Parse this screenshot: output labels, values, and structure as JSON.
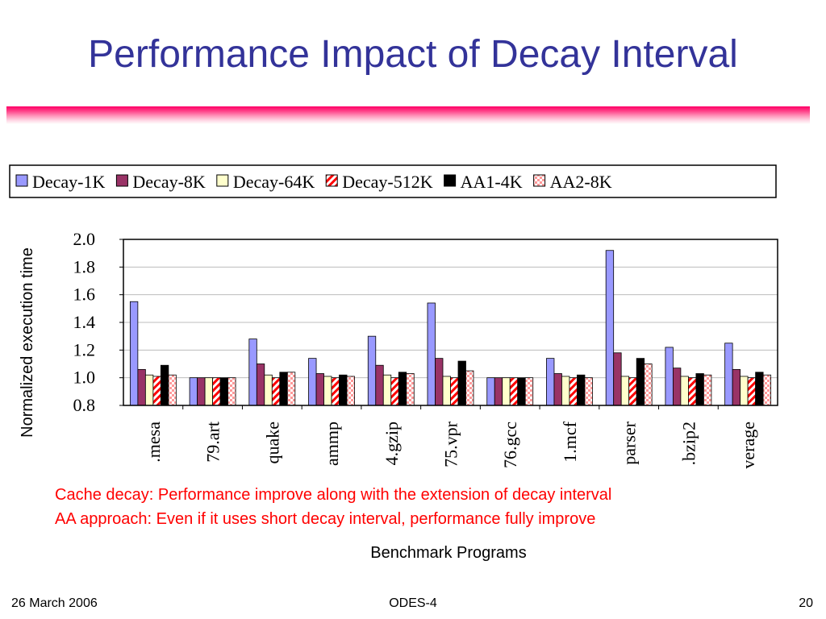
{
  "slide": {
    "title": "Performance Impact of Decay Interval",
    "notes": [
      "Cache decay: Performance improve along with the extension of decay interval",
      "AA approach: Even if it uses short decay interval, performance fully improve"
    ],
    "footer": {
      "date": "26 March 2006",
      "center": "ODES-4",
      "page": "20"
    }
  },
  "colors": {
    "title": "#333399",
    "rule": "#ff0066",
    "notes": "#ff0000"
  },
  "chart_data": {
    "type": "bar",
    "categories": [
      ".mesa",
      "79.art",
      "quake",
      "ammp",
      "4.gzip",
      "75.vpr",
      "76.gcc",
      "1.mcf",
      "parser",
      ".bzip2",
      "verage"
    ],
    "series": [
      {
        "name": "Decay-1K",
        "color": "#9999ff",
        "pattern": "solid",
        "values": [
          1.55,
          1.0,
          1.28,
          1.14,
          1.3,
          1.54,
          1.0,
          1.14,
          1.92,
          1.22,
          1.25
        ]
      },
      {
        "name": "Decay-8K",
        "color": "#993366",
        "pattern": "solid",
        "values": [
          1.06,
          1.0,
          1.1,
          1.03,
          1.09,
          1.14,
          1.0,
          1.03,
          1.18,
          1.07,
          1.06
        ]
      },
      {
        "name": "Decay-64K",
        "color": "#ffffcc",
        "pattern": "solid",
        "values": [
          1.02,
          1.0,
          1.02,
          1.01,
          1.02,
          1.01,
          1.0,
          1.01,
          1.01,
          1.01,
          1.01
        ]
      },
      {
        "name": "Decay-512K",
        "color": "#ff0000",
        "pattern": "diagonal-stripes",
        "values": [
          1.01,
          1.0,
          1.0,
          1.0,
          1.0,
          1.0,
          1.0,
          1.0,
          1.0,
          1.0,
          1.0
        ]
      },
      {
        "name": "AA1-4K",
        "color": "#000000",
        "pattern": "solid",
        "values": [
          1.09,
          1.0,
          1.04,
          1.02,
          1.04,
          1.12,
          1.0,
          1.02,
          1.14,
          1.03,
          1.04
        ]
      },
      {
        "name": "AA2-8K",
        "color": "#ff9999",
        "pattern": "checker",
        "values": [
          1.02,
          1.0,
          1.04,
          1.01,
          1.03,
          1.05,
          1.0,
          1.0,
          1.1,
          1.02,
          1.02
        ]
      }
    ],
    "ylabel": "Normalized execution time",
    "xlabel": "Benchmark Programs",
    "ylim": [
      0.8,
      2.0
    ],
    "yticks": [
      "0.8",
      "1.0",
      "1.2",
      "1.4",
      "1.6",
      "1.8",
      "2.0"
    ],
    "grid": true,
    "legend_position": "top"
  }
}
